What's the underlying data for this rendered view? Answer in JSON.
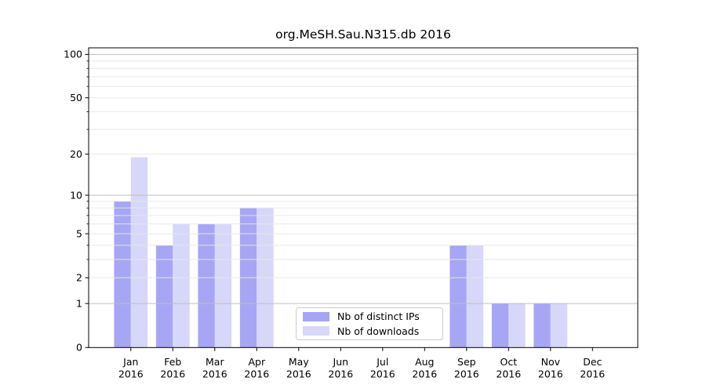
{
  "title": "org.MeSH.Sau.N315.db 2016",
  "legend": {
    "items": [
      {
        "label": "Nb of distinct IPs",
        "series": "distinct_ips"
      },
      {
        "label": "Nb of downloads",
        "series": "downloads"
      }
    ]
  },
  "colors": {
    "ips_bar": "#a6a6f4",
    "downloads_bar": "#d7d7f9",
    "major_gridline": "#bdbdbd",
    "minor_gridline": "#e8e8e8",
    "legend_border": "#cccccc",
    "axis": "#000000"
  },
  "chart_data": {
    "type": "bar",
    "title": "org.MeSH.Sau.N315.db 2016",
    "y_scale": "log10(1+y)",
    "categories": [
      "Jan",
      "Feb",
      "Mar",
      "Apr",
      "May",
      "Jun",
      "Jul",
      "Aug",
      "Sep",
      "Oct",
      "Nov",
      "Dec"
    ],
    "category_year": "2016",
    "series": [
      {
        "name": "Nb of distinct IPs",
        "color": "#a6a6f4",
        "values": [
          9,
          4,
          6,
          8,
          0,
          0,
          0,
          0,
          4,
          1,
          1,
          0
        ]
      },
      {
        "name": "Nb of downloads",
        "color": "#d7d7f9",
        "values": [
          19,
          6,
          6,
          8,
          0,
          0,
          0,
          0,
          4,
          1,
          1,
          0
        ]
      }
    ],
    "xlabel": "",
    "ylabel": "",
    "ylim": [
      0,
      111
    ],
    "y_labeled_ticks": [
      0,
      1,
      2,
      5,
      10,
      20,
      50,
      100
    ],
    "y_major_gridlines": [
      1,
      10,
      100
    ],
    "y_minor_gridlines": [
      2,
      3,
      4,
      5,
      6,
      7,
      8,
      9,
      20,
      30,
      40,
      50,
      60,
      70,
      80,
      90
    ],
    "grid": true,
    "grid_above_bars": true,
    "legend_position": "lower center"
  }
}
